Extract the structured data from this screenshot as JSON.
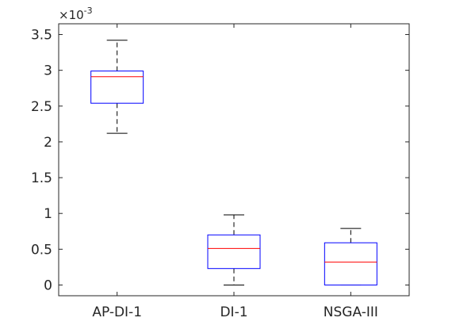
{
  "chart_data": {
    "type": "box",
    "categories": [
      "AP-DI-1",
      "DI-1",
      "NSGA-III"
    ],
    "scale_exponent_label": "×10",
    "scale_exponent_power": "-3",
    "ylim": [
      -0.15,
      3.65
    ],
    "y_ticks": [
      0,
      0.5,
      1,
      1.5,
      2,
      2.5,
      3,
      3.5
    ],
    "y_tick_labels": [
      "0",
      "0.5",
      "1",
      "1.5",
      "2",
      "2.5",
      "3",
      "3.5"
    ],
    "grid": false,
    "boxes": [
      {
        "category": "AP-DI-1",
        "whisker_low": 2.12,
        "q1": 2.54,
        "median": 2.91,
        "q3": 2.99,
        "whisker_high": 3.42
      },
      {
        "category": "DI-1",
        "whisker_low": 0.0,
        "q1": 0.23,
        "median": 0.51,
        "q3": 0.7,
        "whisker_high": 0.98
      },
      {
        "category": "NSGA-III",
        "whisker_low": 0.0,
        "q1": 0.0,
        "median": 0.32,
        "q3": 0.59,
        "whisker_high": 0.79
      }
    ],
    "colors": {
      "box": "#0000ff",
      "median": "#ff0000",
      "whisker": "#000000",
      "axis": "#262626"
    }
  }
}
